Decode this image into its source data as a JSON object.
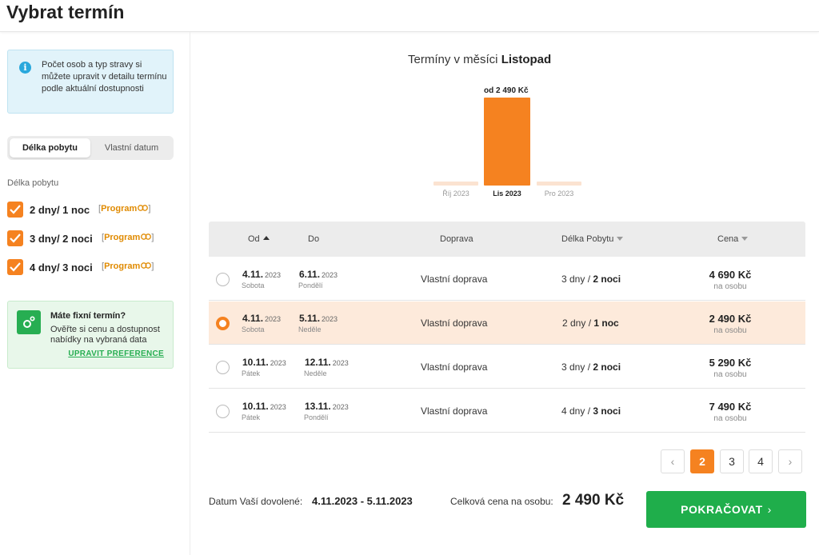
{
  "page": {
    "title": "Vybrat termín"
  },
  "sidebar": {
    "info_text": "Počet osob a typ stravy si můžete upravit v detailu termínu podle aktuální dostupnosti",
    "tabs": [
      {
        "label": "Délka pobytu",
        "active": true
      },
      {
        "label": "Vlastní datum",
        "active": false
      }
    ],
    "filter_label": "Délka pobytu",
    "filters": [
      {
        "label": "2 dny/ 1 noc",
        "checked": true,
        "program": "Program"
      },
      {
        "label": "3 dny/ 2 noci",
        "checked": true,
        "program": "Program"
      },
      {
        "label": "4 dny/ 3 noci",
        "checked": true,
        "program": "Program"
      }
    ],
    "fixed_box": {
      "title": "Máte fixní termín?",
      "text": "Ověřte si cenu a dostupnost nabídky na vybraná data",
      "link": "UPRAVIT PREFERENCE"
    }
  },
  "chart": {
    "title_prefix": "Termíny v měsíci",
    "month": "Listopad",
    "bar_label": "od 2 490 Kč"
  },
  "chart_data": {
    "type": "bar",
    "categories": [
      "Říj 2023",
      "Lis 2023",
      "Pro 2023"
    ],
    "values": [
      0,
      2490,
      0
    ],
    "active_category": "Lis 2023",
    "colors": {
      "active": "#f58220",
      "inactive": "#fbe3d1"
    }
  },
  "table": {
    "headers": {
      "from": "Od",
      "to": "Do",
      "transport": "Doprava",
      "length": "Délka Pobytu",
      "price": "Cena"
    },
    "rows": [
      {
        "from_date": "4.11.",
        "from_year": "2023",
        "from_day": "Sobota",
        "to_date": "6.11.",
        "to_year": "2023",
        "to_day": "Pondělí",
        "transport": "Vlastní doprava",
        "days": "3 dny",
        "nights": "2 noci",
        "price": "4 690 Kč",
        "per": "na osobu",
        "selected": false
      },
      {
        "from_date": "4.11.",
        "from_year": "2023",
        "from_day": "Sobota",
        "to_date": "5.11.",
        "to_year": "2023",
        "to_day": "Neděle",
        "transport": "Vlastní doprava",
        "days": "2 dny",
        "nights": "1 noc",
        "price": "2 490 Kč",
        "per": "na osobu",
        "selected": true
      },
      {
        "from_date": "10.11.",
        "from_year": "2023",
        "from_day": "Pátek",
        "to_date": "12.11.",
        "to_year": "2023",
        "to_day": "Neděle",
        "transport": "Vlastní doprava",
        "days": "3 dny",
        "nights": "2 noci",
        "price": "5 290 Kč",
        "per": "na osobu",
        "selected": false
      },
      {
        "from_date": "10.11.",
        "from_year": "2023",
        "from_day": "Pátek",
        "to_date": "13.11.",
        "to_year": "2023",
        "to_day": "Pondělí",
        "transport": "Vlastní doprava",
        "days": "4 dny",
        "nights": "3 noci",
        "price": "7 490 Kč",
        "per": "na osobu",
        "selected": false
      }
    ]
  },
  "pagination": {
    "prev": "‹",
    "pages": [
      "2",
      "3",
      "4"
    ],
    "active": "2",
    "next": "›"
  },
  "footer": {
    "date_label": "Datum Vaší dovolené:",
    "date_value": "4.11.2023 - 5.11.2023",
    "total_label": "Celková cena na osobu:",
    "total_value": "2 490 Kč",
    "continue_label": "POKRAČOVAT",
    "continue_chevron": "›"
  },
  "icons": {
    "info": "info-icon",
    "checkbox": "check-icon",
    "program_link": "link-icon",
    "fixed": "gear-icon",
    "sort_asc": "sort-up-icon",
    "sort_desc": "sort-down-icon",
    "continue": "chevron-right-icon"
  }
}
